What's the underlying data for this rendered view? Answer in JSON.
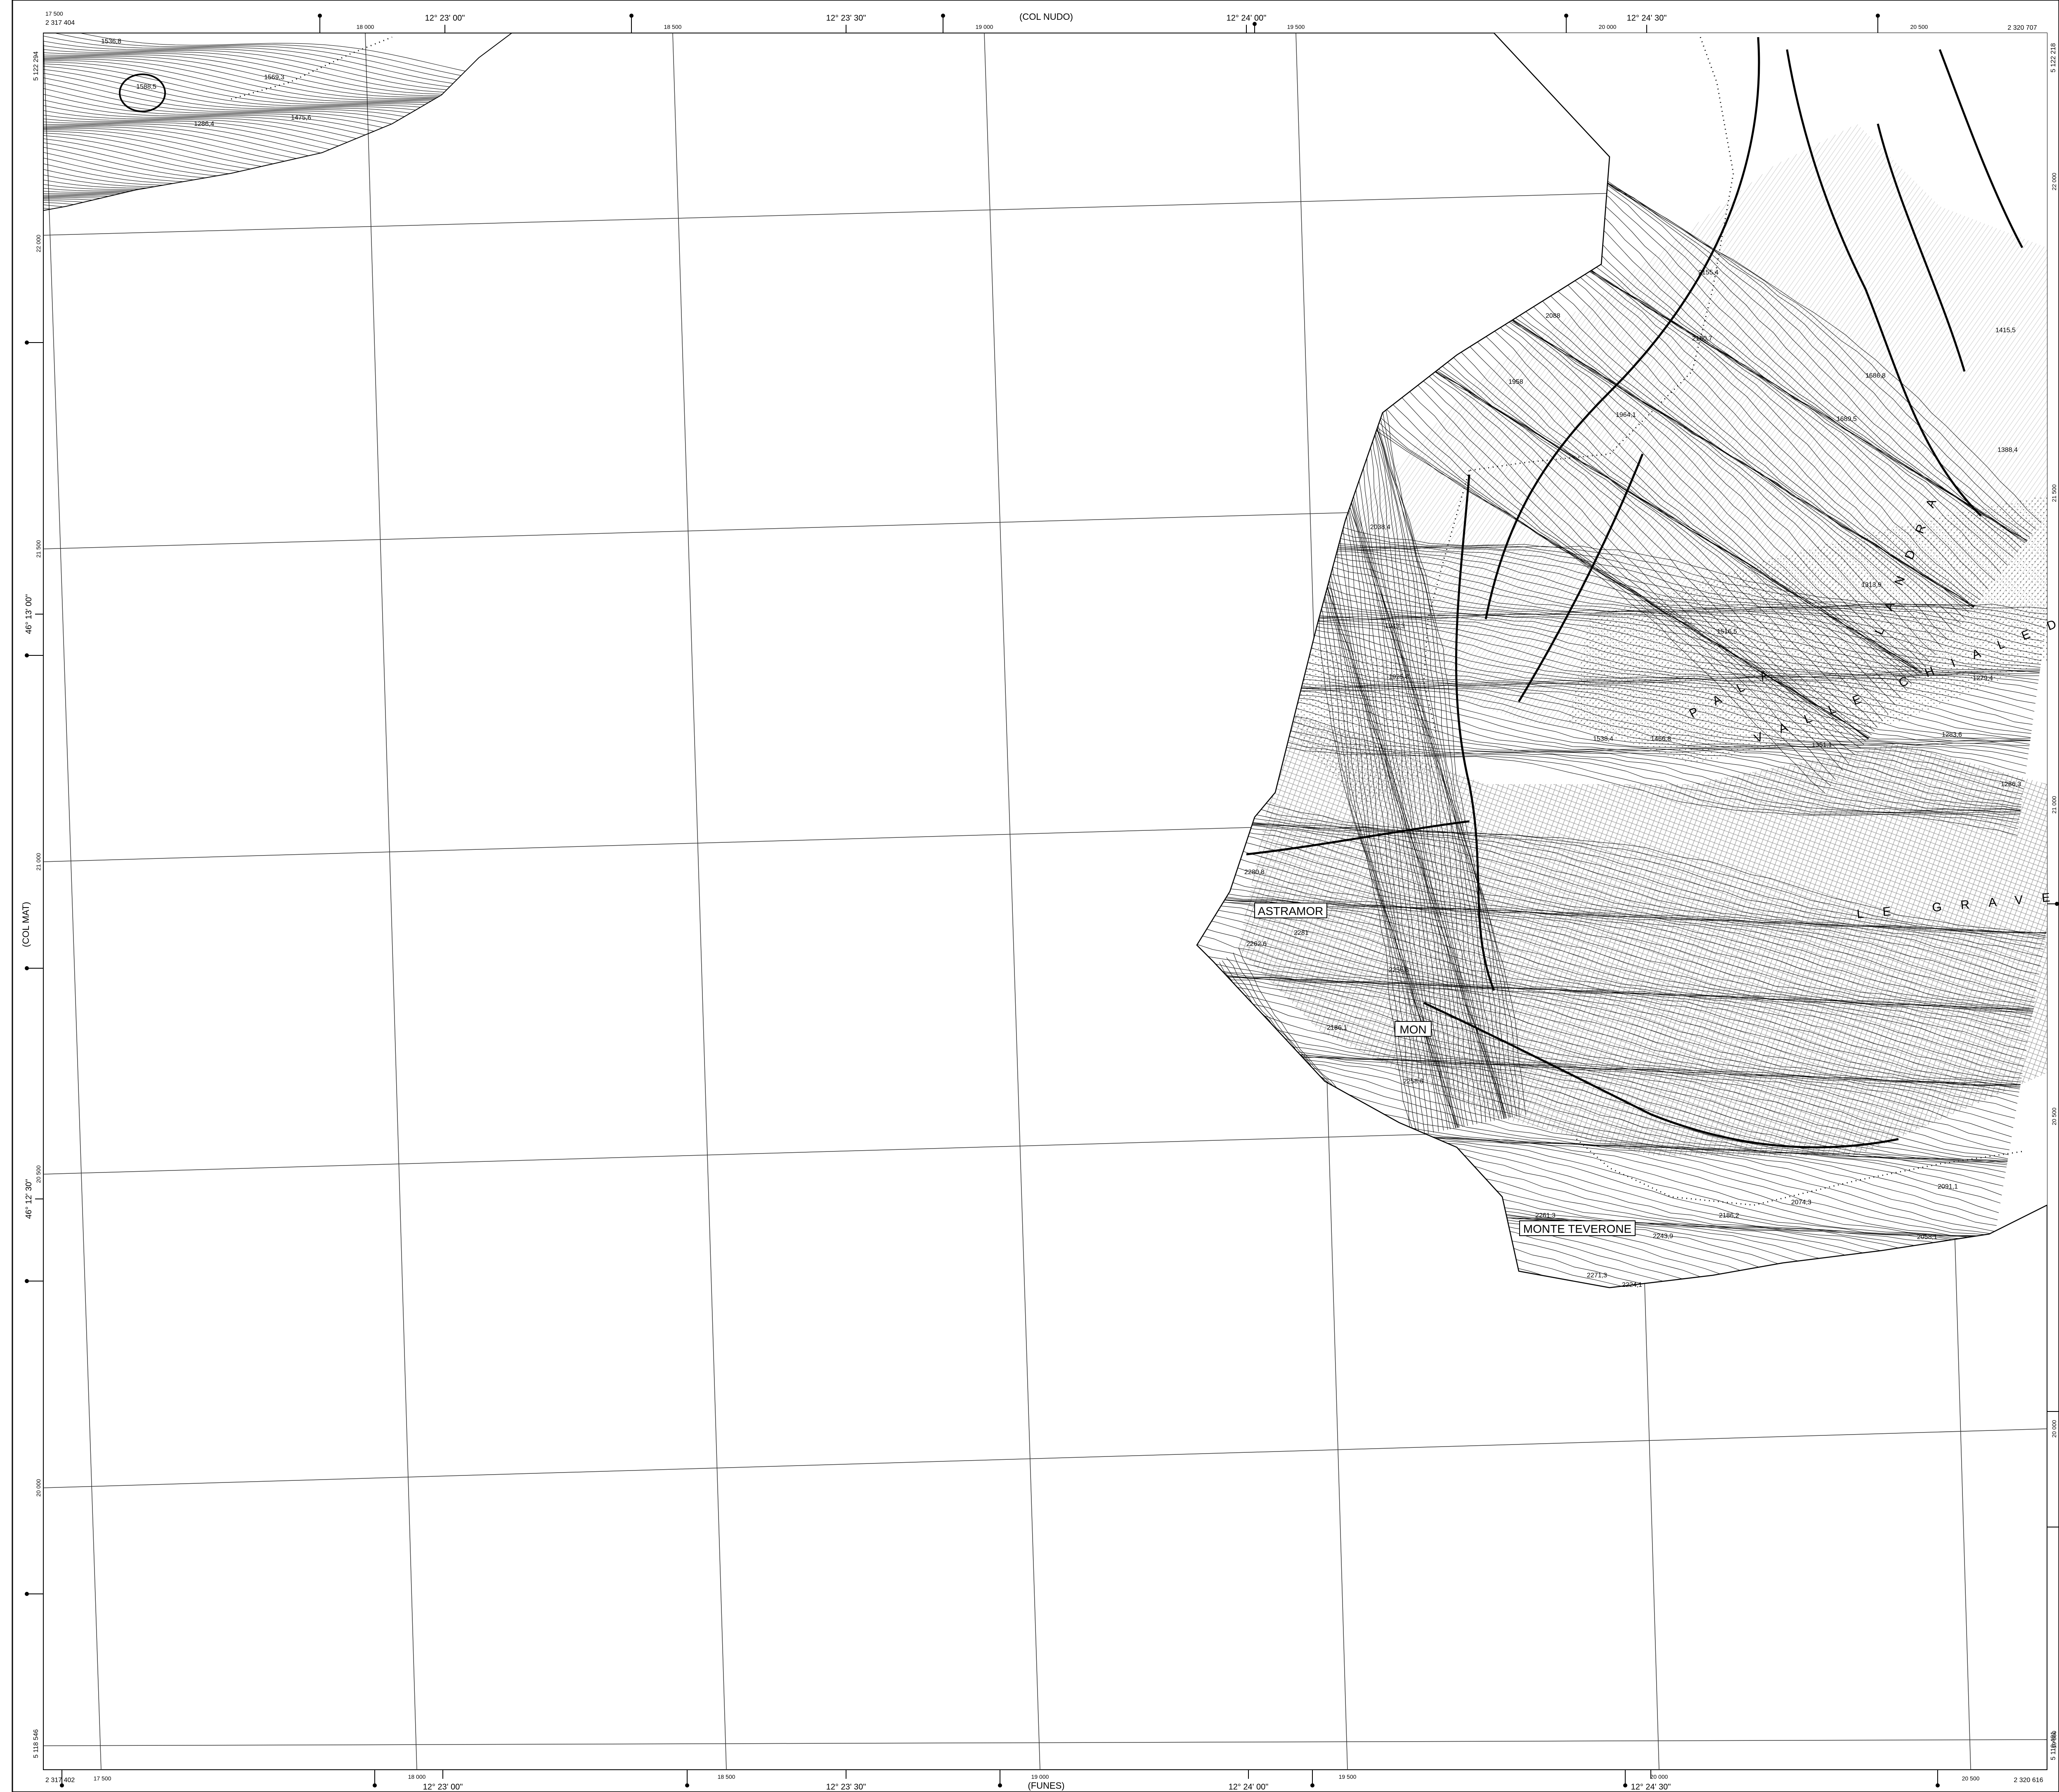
{
  "map": {
    "adjacent_sheets": {
      "north": "(COL NUDO)",
      "south": "(FUNES)",
      "west": "(COL MAT)"
    },
    "top_frame": {
      "corner_left_utm_e": "17 500",
      "corner_left_label": "2 317 404",
      "corner_right_label": "2 320 707",
      "easting_labels": [
        "18 000",
        "18 500",
        "19 000",
        "19 500",
        "20 000",
        "20 500"
      ],
      "longitude_labels": [
        "12° 23' 00\"",
        "12° 23' 30\"",
        "12° 24' 00\"",
        "12° 24' 30\""
      ]
    },
    "bottom_frame": {
      "corner_left_label": "2 317 402",
      "corner_left_utm_e": "17 500",
      "corner_right_label": "2 320 616",
      "easting_labels": [
        "18 000",
        "18 500",
        "19 000",
        "19 500",
        "20 000",
        "20 500"
      ],
      "longitude_labels": [
        "12° 23' 00\"",
        "12° 23' 30\"",
        "12° 24' 00\"",
        "12° 24' 30\""
      ]
    },
    "left_frame": {
      "top_corner_label": "5 122 294",
      "bottom_corner_label": "5 118 546",
      "northing_labels": [
        "22 000",
        "21 500",
        "21 000",
        "20 500",
        "20 000"
      ],
      "latitude_labels": [
        "46° 13' 00\"",
        "46° 12' 30\""
      ]
    },
    "right_frame": {
      "top_corner_label": "5 122 218",
      "bottom_corner_label": "5 118 481",
      "northing_labels": [
        "22 000",
        "21 500",
        "21 000",
        "20 500",
        "20 000",
        "19 500"
      ]
    },
    "place_names": {
      "astramor": "ASTRAMOR",
      "mon": "MON",
      "monte_teverone": "MONTE TEVERONE"
    },
    "valley_names": {
      "valle_chialedina": "VALLE CHIALEDINA",
      "landra": "LANDRA",
      "le_grave": "LE GRAVE",
      "pala": "PALA"
    },
    "spot_heights": [
      "1536,8",
      "1588,5",
      "1569,3",
      "1475,6",
      "1286,4",
      "2088",
      "1958",
      "1964,1",
      "2155,4",
      "2180,7",
      "1686,8",
      "1689,5",
      "1415,5",
      "1388,4",
      "2038,4",
      "1943,3",
      "1925,8",
      "1516,5",
      "1313,9",
      "1279,4",
      "1283,6",
      "1466,8",
      "1538,4",
      "1351,1",
      "1286,3",
      "2280,8",
      "2262,6",
      "2281",
      "2186,1",
      "2256,6",
      "2258,6",
      "2243,9",
      "2271,3",
      "2261,3",
      "2186,2",
      "2074,3",
      "2058,1",
      "2091,1",
      "2224,1"
    ]
  }
}
